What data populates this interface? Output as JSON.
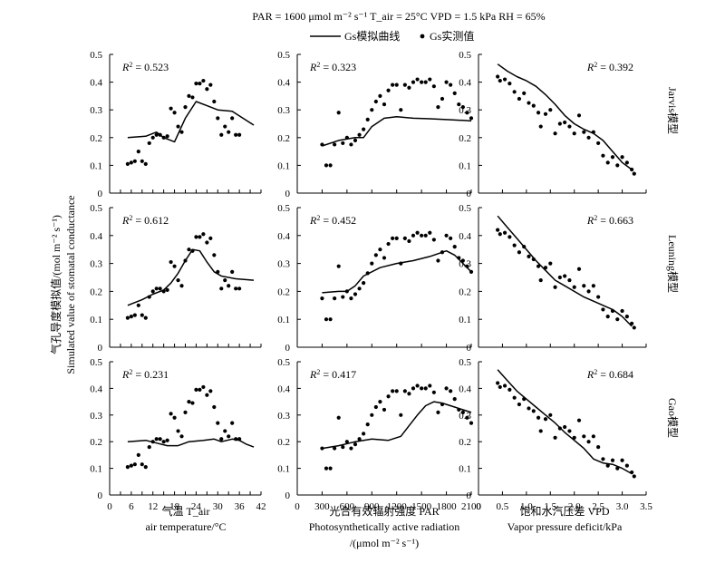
{
  "header": {
    "conditions": "PAR = 1600 μmol m⁻² s⁻¹     T_air = 25°C     VPD = 1.5 kPa     RH = 65%",
    "legend_line": "Gs模拟曲线",
    "legend_dots": "Gs实测值"
  },
  "y_axis": {
    "label_cn": "气孔导度模拟值/(mol m⁻² s⁻¹)",
    "label_en": "Simulated value of stomatal conductance"
  },
  "x_axes": {
    "temp_cn": "气温 T_air",
    "temp_en": "air temperature/°C",
    "par_cn": "光合有效辐射强度 PAR",
    "par_en": "Photosynthetically active radiation",
    "par_unit": "/(μmol m⁻² s⁻¹)",
    "vpd_cn": "饱和水汽压差 VPD",
    "vpd_en": "Vapor pressure deficit/kPa"
  },
  "row_labels": [
    "Jarvis模型",
    "Leuning模型",
    "Gao模型"
  ],
  "chart_data": {
    "type": "scatter",
    "ylim": [
      0,
      0.5
    ],
    "yticks": [
      "0",
      "0.1",
      "0.2",
      "0.3",
      "0.4",
      "0.5"
    ],
    "columns": [
      {
        "xlabel": "气温 T_air / air temperature/°C",
        "xlim": [
          0,
          42
        ],
        "xticks": [
          "0",
          "3",
          "6",
          "9",
          "12",
          "15",
          "18",
          "21",
          "24",
          "27",
          "30",
          "33",
          "36",
          "39",
          "42"
        ],
        "xtick_labels": [
          "0",
          "6",
          "12",
          "18",
          "24",
          "30",
          "36",
          "42"
        ],
        "observed": [
          [
            5,
            0.105
          ],
          [
            6,
            0.11
          ],
          [
            7,
            0.115
          ],
          [
            8,
            0.15
          ],
          [
            9,
            0.115
          ],
          [
            10,
            0.105
          ],
          [
            11,
            0.18
          ],
          [
            12,
            0.2
          ],
          [
            13,
            0.21
          ],
          [
            14,
            0.21
          ],
          [
            15,
            0.2
          ],
          [
            16,
            0.205
          ],
          [
            17,
            0.305
          ],
          [
            18,
            0.29
          ],
          [
            19,
            0.24
          ],
          [
            20,
            0.22
          ],
          [
            21,
            0.31
          ],
          [
            22,
            0.35
          ],
          [
            23,
            0.345
          ],
          [
            24,
            0.395
          ],
          [
            25,
            0.395
          ],
          [
            26,
            0.405
          ],
          [
            27,
            0.375
          ],
          [
            28,
            0.39
          ],
          [
            29,
            0.33
          ],
          [
            30,
            0.27
          ],
          [
            31,
            0.21
          ],
          [
            32,
            0.24
          ],
          [
            33,
            0.22
          ],
          [
            34,
            0.27
          ],
          [
            35,
            0.21
          ],
          [
            36,
            0.21
          ]
        ]
      },
      {
        "xlabel": "光合有效辐射强度 PAR / Photosynthetically active radiation /(μmol m⁻² s⁻¹)",
        "xlim": [
          0,
          2100
        ],
        "xticks": [
          "0",
          "300",
          "600",
          "900",
          "1200",
          "1500",
          "1800",
          "2100"
        ],
        "observed": [
          [
            300,
            0.175
          ],
          [
            350,
            0.1
          ],
          [
            400,
            0.1
          ],
          [
            450,
            0.175
          ],
          [
            500,
            0.29
          ],
          [
            550,
            0.18
          ],
          [
            600,
            0.2
          ],
          [
            650,
            0.175
          ],
          [
            700,
            0.19
          ],
          [
            750,
            0.21
          ],
          [
            800,
            0.23
          ],
          [
            850,
            0.265
          ],
          [
            900,
            0.3
          ],
          [
            950,
            0.33
          ],
          [
            1000,
            0.35
          ],
          [
            1050,
            0.32
          ],
          [
            1100,
            0.37
          ],
          [
            1150,
            0.39
          ],
          [
            1200,
            0.39
          ],
          [
            1250,
            0.3
          ],
          [
            1300,
            0.39
          ],
          [
            1350,
            0.38
          ],
          [
            1400,
            0.4
          ],
          [
            1450,
            0.41
          ],
          [
            1500,
            0.4
          ],
          [
            1550,
            0.4
          ],
          [
            1600,
            0.41
          ],
          [
            1650,
            0.385
          ],
          [
            1700,
            0.31
          ],
          [
            1750,
            0.34
          ],
          [
            1800,
            0.4
          ],
          [
            1850,
            0.39
          ],
          [
            1900,
            0.36
          ],
          [
            1950,
            0.32
          ],
          [
            2000,
            0.31
          ],
          [
            2050,
            0.29
          ],
          [
            2100,
            0.27
          ]
        ]
      },
      {
        "xlabel": "饱和水汽压差 VPD / Vapor pressure deficit/kPa",
        "xlim": [
          0,
          3.5
        ],
        "xticks": [
          "0",
          "0.5",
          "1.0",
          "1.5",
          "2.0",
          "2.5",
          "3.0",
          "3.5"
        ],
        "observed": [
          [
            0.4,
            0.42
          ],
          [
            0.45,
            0.405
          ],
          [
            0.55,
            0.41
          ],
          [
            0.65,
            0.395
          ],
          [
            0.75,
            0.365
          ],
          [
            0.85,
            0.34
          ],
          [
            0.95,
            0.36
          ],
          [
            1.05,
            0.325
          ],
          [
            1.15,
            0.315
          ],
          [
            1.25,
            0.29
          ],
          [
            1.3,
            0.24
          ],
          [
            1.4,
            0.285
          ],
          [
            1.5,
            0.3
          ],
          [
            1.6,
            0.215
          ],
          [
            1.7,
            0.25
          ],
          [
            1.8,
            0.255
          ],
          [
            1.9,
            0.24
          ],
          [
            2.0,
            0.215
          ],
          [
            2.1,
            0.28
          ],
          [
            2.2,
            0.22
          ],
          [
            2.3,
            0.2
          ],
          [
            2.4,
            0.22
          ],
          [
            2.5,
            0.18
          ],
          [
            2.6,
            0.135
          ],
          [
            2.7,
            0.11
          ],
          [
            2.8,
            0.13
          ],
          [
            2.9,
            0.1
          ],
          [
            3.0,
            0.13
          ],
          [
            3.1,
            0.11
          ],
          [
            3.2,
            0.085
          ],
          [
            3.25,
            0.07
          ]
        ]
      }
    ],
    "models": [
      {
        "name": "Jarvis模型",
        "r2": [
          "0.523",
          "0.323",
          "0.392"
        ],
        "curves": [
          [
            [
              5,
              0.2
            ],
            [
              10,
              0.205
            ],
            [
              13,
              0.22
            ],
            [
              15,
              0.2
            ],
            [
              18,
              0.185
            ],
            [
              21,
              0.27
            ],
            [
              24,
              0.33
            ],
            [
              27,
              0.315
            ],
            [
              30,
              0.3
            ],
            [
              34,
              0.295
            ],
            [
              37,
              0.27
            ],
            [
              40,
              0.245
            ]
          ],
          [
            [
              300,
              0.17
            ],
            [
              500,
              0.19
            ],
            [
              700,
              0.2
            ],
            [
              800,
              0.2
            ],
            [
              900,
              0.24
            ],
            [
              1050,
              0.27
            ],
            [
              1200,
              0.275
            ],
            [
              1400,
              0.27
            ],
            [
              1600,
              0.268
            ],
            [
              1800,
              0.265
            ],
            [
              2000,
              0.262
            ],
            [
              2100,
              0.26
            ]
          ],
          [
            [
              0.4,
              0.465
            ],
            [
              0.6,
              0.44
            ],
            [
              0.8,
              0.42
            ],
            [
              1.0,
              0.405
            ],
            [
              1.2,
              0.385
            ],
            [
              1.4,
              0.355
            ],
            [
              1.6,
              0.32
            ],
            [
              1.8,
              0.28
            ],
            [
              2.0,
              0.25
            ],
            [
              2.2,
              0.23
            ],
            [
              2.4,
              0.215
            ],
            [
              2.6,
              0.19
            ],
            [
              2.8,
              0.15
            ],
            [
              3.0,
              0.11
            ],
            [
              3.2,
              0.085
            ]
          ]
        ]
      },
      {
        "name": "Leuning模型",
        "r2": [
          "0.612",
          "0.452",
          "0.663"
        ],
        "curves": [
          [
            [
              5,
              0.15
            ],
            [
              9,
              0.17
            ],
            [
              12,
              0.19
            ],
            [
              15,
              0.205
            ],
            [
              17,
              0.23
            ],
            [
              19,
              0.265
            ],
            [
              21,
              0.31
            ],
            [
              23,
              0.35
            ],
            [
              25,
              0.345
            ],
            [
              27,
              0.305
            ],
            [
              29,
              0.27
            ],
            [
              31,
              0.255
            ],
            [
              35,
              0.245
            ],
            [
              40,
              0.24
            ]
          ],
          [
            [
              300,
              0.195
            ],
            [
              500,
              0.2
            ],
            [
              600,
              0.2
            ],
            [
              700,
              0.22
            ],
            [
              800,
              0.255
            ],
            [
              1000,
              0.285
            ],
            [
              1200,
              0.3
            ],
            [
              1400,
              0.31
            ],
            [
              1600,
              0.325
            ],
            [
              1800,
              0.345
            ],
            [
              1900,
              0.33
            ],
            [
              2000,
              0.3
            ],
            [
              2100,
              0.27
            ]
          ],
          [
            [
              0.4,
              0.47
            ],
            [
              0.6,
              0.43
            ],
            [
              0.8,
              0.39
            ],
            [
              1.0,
              0.35
            ],
            [
              1.2,
              0.31
            ],
            [
              1.4,
              0.275
            ],
            [
              1.6,
              0.24
            ],
            [
              1.8,
              0.22
            ],
            [
              2.0,
              0.2
            ],
            [
              2.2,
              0.18
            ],
            [
              2.4,
              0.165
            ],
            [
              2.6,
              0.15
            ],
            [
              2.8,
              0.135
            ],
            [
              3.0,
              0.11
            ],
            [
              3.2,
              0.075
            ]
          ]
        ]
      },
      {
        "name": "Gao模型",
        "r2": [
          "0.231",
          "0.417",
          "0.684"
        ],
        "curves": [
          [
            [
              5,
              0.2
            ],
            [
              10,
              0.205
            ],
            [
              13,
              0.195
            ],
            [
              16,
              0.185
            ],
            [
              19,
              0.185
            ],
            [
              22,
              0.2
            ],
            [
              26,
              0.205
            ],
            [
              29,
              0.21
            ],
            [
              31,
              0.2
            ],
            [
              34,
              0.21
            ],
            [
              36,
              0.205
            ],
            [
              38,
              0.19
            ],
            [
              40,
              0.18
            ]
          ],
          [
            [
              300,
              0.175
            ],
            [
              500,
              0.185
            ],
            [
              700,
              0.2
            ],
            [
              900,
              0.21
            ],
            [
              1100,
              0.205
            ],
            [
              1250,
              0.22
            ],
            [
              1350,
              0.26
            ],
            [
              1450,
              0.3
            ],
            [
              1550,
              0.335
            ],
            [
              1650,
              0.35
            ],
            [
              1750,
              0.345
            ],
            [
              1900,
              0.33
            ],
            [
              2100,
              0.31
            ]
          ],
          [
            [
              0.4,
              0.47
            ],
            [
              0.6,
              0.43
            ],
            [
              0.8,
              0.39
            ],
            [
              1.0,
              0.36
            ],
            [
              1.2,
              0.33
            ],
            [
              1.4,
              0.3
            ],
            [
              1.6,
              0.27
            ],
            [
              1.8,
              0.235
            ],
            [
              2.0,
              0.205
            ],
            [
              2.2,
              0.175
            ],
            [
              2.4,
              0.135
            ],
            [
              2.6,
              0.12
            ],
            [
              2.8,
              0.115
            ],
            [
              3.0,
              0.1
            ],
            [
              3.2,
              0.08
            ]
          ]
        ]
      }
    ]
  }
}
